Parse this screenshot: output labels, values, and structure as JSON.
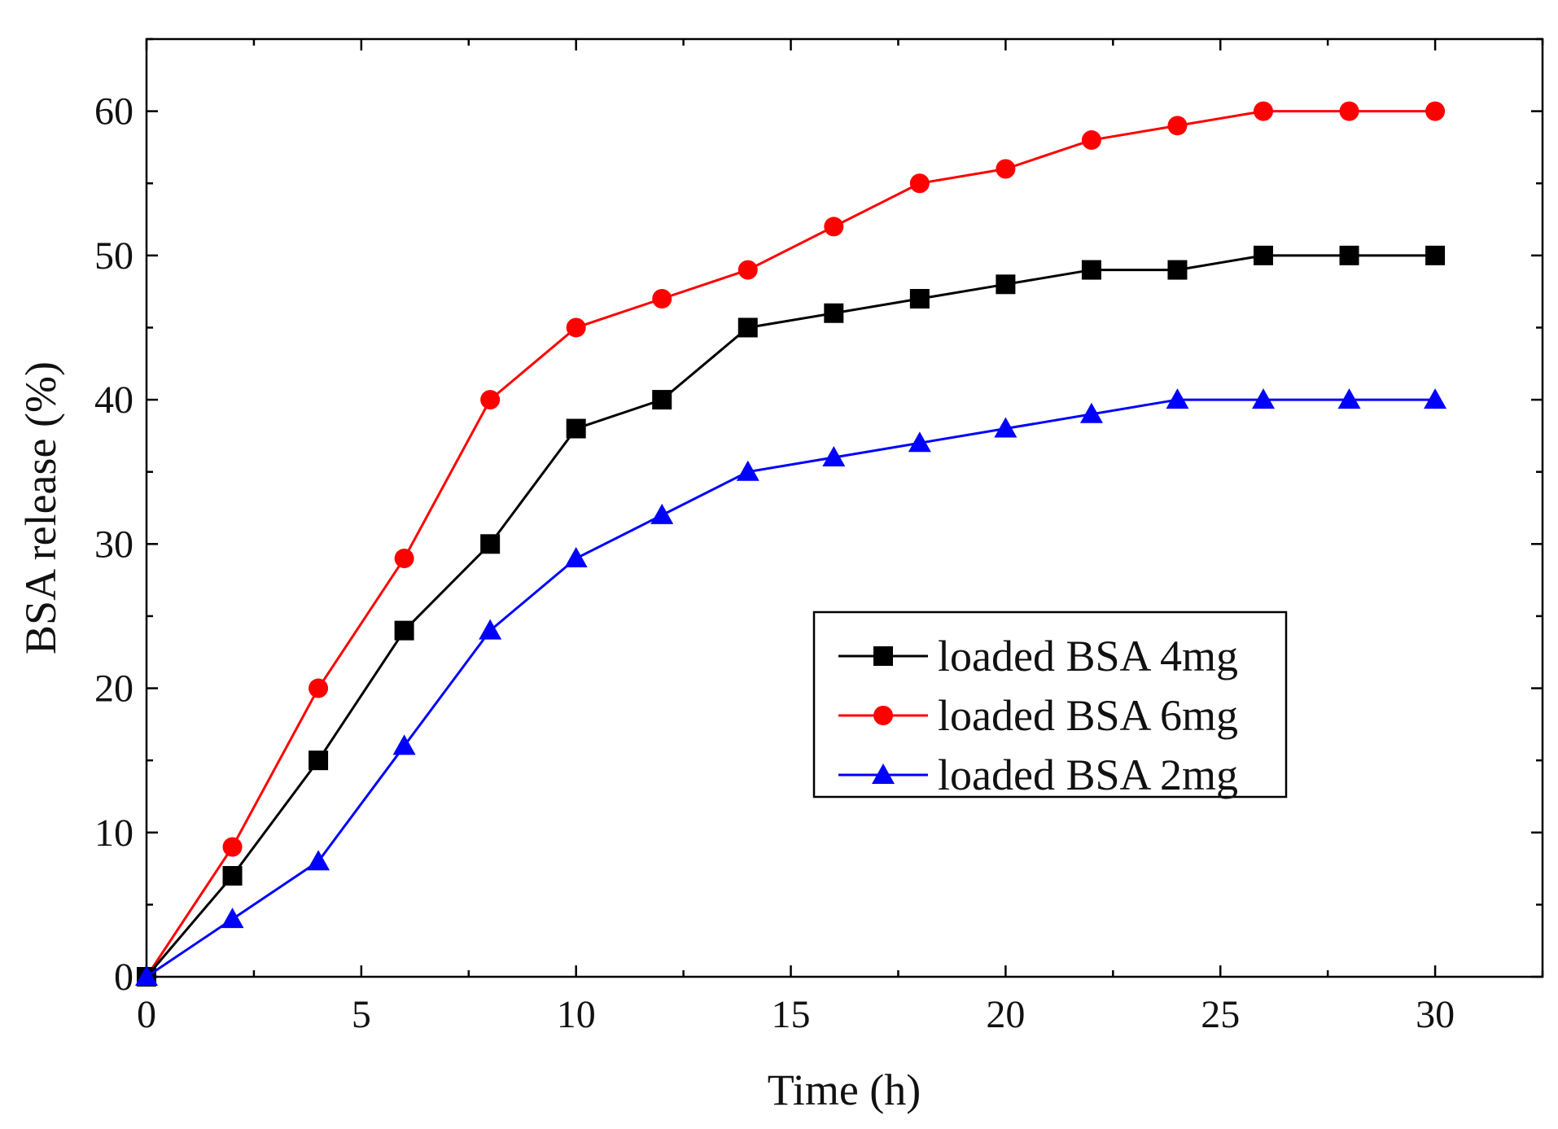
{
  "chart_data": {
    "type": "line",
    "title": "",
    "xlabel": "Time (h)",
    "ylabel": "BSA release (%)",
    "xlim": [
      0,
      32.5
    ],
    "ylim": [
      0,
      65
    ],
    "xticks": [
      0,
      5,
      10,
      15,
      20,
      25,
      30
    ],
    "yticks": [
      0,
      10,
      20,
      30,
      40,
      50,
      60
    ],
    "x": [
      0,
      2,
      4,
      6,
      8,
      10,
      12,
      14,
      16,
      18,
      20,
      22,
      24,
      26,
      28,
      30
    ],
    "legend_position": "center-right",
    "series": [
      {
        "name": "loaded BSA 4mg",
        "color": "#000000",
        "marker": "square",
        "values": [
          0,
          7,
          15,
          24,
          30,
          38,
          40,
          45,
          46,
          47,
          48,
          49,
          49,
          50,
          50,
          50
        ]
      },
      {
        "name": "loaded BSA 6mg",
        "color": "#ff0000",
        "marker": "circle",
        "values": [
          0,
          9,
          20,
          29,
          40,
          45,
          47,
          49,
          52,
          55,
          56,
          58,
          59,
          60,
          60,
          60
        ]
      },
      {
        "name": "loaded BSA 2mg",
        "color": "#0000ff",
        "marker": "triangle",
        "values": [
          0,
          4,
          8,
          16,
          24,
          29,
          32,
          35,
          36,
          37,
          38,
          39,
          40,
          40,
          40,
          40
        ]
      }
    ]
  }
}
